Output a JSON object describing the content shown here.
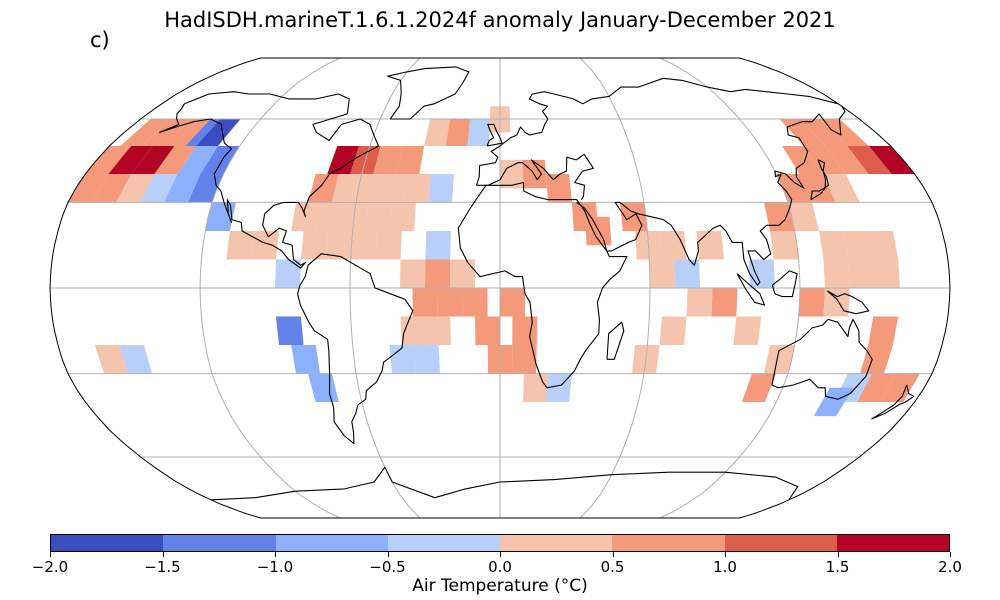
{
  "title": "HadISDH.marineT.1.6.1.2024f anomaly January-December 2021",
  "panel_label": "c)",
  "colorbar": {
    "label": "Air Temperature (°C)",
    "ticks": [
      "−2.0",
      "−1.5",
      "−1.0",
      "−0.5",
      "0.0",
      "0.5",
      "1.0",
      "1.5",
      "2.0"
    ],
    "colors": [
      "#3b4cc0",
      "#6282ea",
      "#8db0fe",
      "#b7cff9",
      "#f5c4ac",
      "#f49a7b",
      "#dc5d4a",
      "#b40426"
    ]
  },
  "map": {
    "projection": "Robinson",
    "gridlines": true,
    "coastline_color": "#000000",
    "cells": [
      {
        "lon": -170,
        "lat": 55,
        "v": 0.8
      },
      {
        "lon": -160,
        "lat": 55,
        "v": 0.7
      },
      {
        "lon": -150,
        "lat": 55,
        "v": 0.6
      },
      {
        "lon": -140,
        "lat": 55,
        "v": -1.2
      },
      {
        "lon": -135,
        "lat": 55,
        "v": -1.6
      },
      {
        "lon": -175,
        "lat": 45,
        "v": 0.9
      },
      {
        "lon": -165,
        "lat": 45,
        "v": 1.6
      },
      {
        "lon": -155,
        "lat": 45,
        "v": 1.7
      },
      {
        "lon": -145,
        "lat": 45,
        "v": 0.9
      },
      {
        "lon": -135,
        "lat": 45,
        "v": -0.7
      },
      {
        "lon": -125,
        "lat": 45,
        "v": -1.2
      },
      {
        "lon": -175,
        "lat": 35,
        "v": 0.7
      },
      {
        "lon": -165,
        "lat": 35,
        "v": 0.6
      },
      {
        "lon": -155,
        "lat": 35,
        "v": 0.3
      },
      {
        "lon": -145,
        "lat": 35,
        "v": -0.3
      },
      {
        "lon": -135,
        "lat": 35,
        "v": -0.6
      },
      {
        "lon": -125,
        "lat": 35,
        "v": -1.1
      },
      {
        "lon": -115,
        "lat": 25,
        "v": -0.8
      },
      {
        "lon": -105,
        "lat": 15,
        "v": 0.4
      },
      {
        "lon": -95,
        "lat": 15,
        "v": 0.3
      },
      {
        "lon": -85,
        "lat": 5,
        "v": -0.4
      },
      {
        "lon": -85,
        "lat": -15,
        "v": -1.2
      },
      {
        "lon": -80,
        "lat": -25,
        "v": -1.0
      },
      {
        "lon": -75,
        "lat": -35,
        "v": -0.9
      },
      {
        "lon": -160,
        "lat": -25,
        "v": 0.4
      },
      {
        "lon": -150,
        "lat": -25,
        "v": -0.3
      },
      {
        "lon": -70,
        "lat": 45,
        "v": 1.6
      },
      {
        "lon": -60,
        "lat": 45,
        "v": 1.1
      },
      {
        "lon": -50,
        "lat": 45,
        "v": 0.9
      },
      {
        "lon": -40,
        "lat": 45,
        "v": 0.6
      },
      {
        "lon": -30,
        "lat": 55,
        "v": 0.4
      },
      {
        "lon": -20,
        "lat": 55,
        "v": 0.5
      },
      {
        "lon": -10,
        "lat": 55,
        "v": -0.3
      },
      {
        "lon": 0,
        "lat": 60,
        "v": 0.3
      },
      {
        "lon": -75,
        "lat": 35,
        "v": 0.6
      },
      {
        "lon": -65,
        "lat": 35,
        "v": 0.4
      },
      {
        "lon": -55,
        "lat": 35,
        "v": 0.3
      },
      {
        "lon": -45,
        "lat": 35,
        "v": 0.4
      },
      {
        "lon": -35,
        "lat": 35,
        "v": 0.3
      },
      {
        "lon": -25,
        "lat": 35,
        "v": -0.3
      },
      {
        "lon": -80,
        "lat": 25,
        "v": 0.4
      },
      {
        "lon": -70,
        "lat": 25,
        "v": 0.3
      },
      {
        "lon": -60,
        "lat": 25,
        "v": 0.3
      },
      {
        "lon": -50,
        "lat": 25,
        "v": 0.4
      },
      {
        "lon": -40,
        "lat": 25,
        "v": 0.3
      },
      {
        "lon": -75,
        "lat": 15,
        "v": 0.4
      },
      {
        "lon": -65,
        "lat": 15,
        "v": 0.3
      },
      {
        "lon": -55,
        "lat": 15,
        "v": 0.4
      },
      {
        "lon": -45,
        "lat": 15,
        "v": 0.3
      },
      {
        "lon": -25,
        "lat": 15,
        "v": -0.4
      },
      {
        "lon": -35,
        "lat": 5,
        "v": 0.4
      },
      {
        "lon": -25,
        "lat": 5,
        "v": 0.6
      },
      {
        "lon": -15,
        "lat": 5,
        "v": 0.3
      },
      {
        "lon": -30,
        "lat": -5,
        "v": 0.6
      },
      {
        "lon": -20,
        "lat": -5,
        "v": 0.7
      },
      {
        "lon": -10,
        "lat": -5,
        "v": 0.8
      },
      {
        "lon": -35,
        "lat": -15,
        "v": 0.3
      },
      {
        "lon": -25,
        "lat": -15,
        "v": 0.4
      },
      {
        "lon": -5,
        "lat": -15,
        "v": 0.8
      },
      {
        "lon": -40,
        "lat": -25,
        "v": -0.3
      },
      {
        "lon": -30,
        "lat": -25,
        "v": -0.4
      },
      {
        "lon": 0,
        "lat": -25,
        "v": 0.6
      },
      {
        "lon": 5,
        "lat": -5,
        "v": 0.7
      },
      {
        "lon": 10,
        "lat": -15,
        "v": 0.7
      },
      {
        "lon": 10,
        "lat": -25,
        "v": 0.6
      },
      {
        "lon": 15,
        "lat": -35,
        "v": 0.4
      },
      {
        "lon": 25,
        "lat": -35,
        "v": -0.3
      },
      {
        "lon": 5,
        "lat": 40,
        "v": 0.4
      },
      {
        "lon": 15,
        "lat": 40,
        "v": 0.6
      },
      {
        "lon": 25,
        "lat": 35,
        "v": 0.5
      },
      {
        "lon": 35,
        "lat": 25,
        "v": 0.7
      },
      {
        "lon": 40,
        "lat": 20,
        "v": 0.6
      },
      {
        "lon": 55,
        "lat": 25,
        "v": 0.5
      },
      {
        "lon": 60,
        "lat": 15,
        "v": 0.4
      },
      {
        "lon": 70,
        "lat": 15,
        "v": 0.3
      },
      {
        "lon": 65,
        "lat": 5,
        "v": 0.4
      },
      {
        "lon": 75,
        "lat": 5,
        "v": -0.3
      },
      {
        "lon": 85,
        "lat": 15,
        "v": 0.4
      },
      {
        "lon": 80,
        "lat": -5,
        "v": 0.3
      },
      {
        "lon": 70,
        "lat": -15,
        "v": 0.4
      },
      {
        "lon": 60,
        "lat": -25,
        "v": 0.3
      },
      {
        "lon": 90,
        "lat": -5,
        "v": 0.6
      },
      {
        "lon": 100,
        "lat": -15,
        "v": 0.4
      },
      {
        "lon": 105,
        "lat": 5,
        "v": -0.3
      },
      {
        "lon": 115,
        "lat": 15,
        "v": 0.4
      },
      {
        "lon": 115,
        "lat": 25,
        "v": 0.6
      },
      {
        "lon": 125,
        "lat": 25,
        "v": 0.4
      },
      {
        "lon": 125,
        "lat": 35,
        "v": 0.7
      },
      {
        "lon": 135,
        "lat": 35,
        "v": 0.6
      },
      {
        "lon": 145,
        "lat": 35,
        "v": 0.4
      },
      {
        "lon": 135,
        "lat": 45,
        "v": 0.8
      },
      {
        "lon": 145,
        "lat": 45,
        "v": 0.7
      },
      {
        "lon": 155,
        "lat": 45,
        "v": 0.6
      },
      {
        "lon": 165,
        "lat": 45,
        "v": 1.2
      },
      {
        "lon": 175,
        "lat": 45,
        "v": 1.6
      },
      {
        "lon": 145,
        "lat": 55,
        "v": 0.6
      },
      {
        "lon": 155,
        "lat": 55,
        "v": 0.7
      },
      {
        "lon": 165,
        "lat": 55,
        "v": 0.5
      },
      {
        "lon": 135,
        "lat": 15,
        "v": 0.4
      },
      {
        "lon": 145,
        "lat": 15,
        "v": 0.3
      },
      {
        "lon": 155,
        "lat": 15,
        "v": 0.3
      },
      {
        "lon": 135,
        "lat": 5,
        "v": 0.3
      },
      {
        "lon": 145,
        "lat": 5,
        "v": 0.4
      },
      {
        "lon": 155,
        "lat": 5,
        "v": 0.3
      },
      {
        "lon": 125,
        "lat": -5,
        "v": 0.6
      },
      {
        "lon": 135,
        "lat": -5,
        "v": 0.4
      },
      {
        "lon": 155,
        "lat": -15,
        "v": 0.7
      },
      {
        "lon": 155,
        "lat": -25,
        "v": 0.6
      },
      {
        "lon": 115,
        "lat": -25,
        "v": 0.4
      },
      {
        "lon": 110,
        "lat": -35,
        "v": 0.6
      },
      {
        "lon": 150,
        "lat": -35,
        "v": -0.4
      },
      {
        "lon": 160,
        "lat": -35,
        "v": 0.8
      },
      {
        "lon": 170,
        "lat": -35,
        "v": 0.9
      },
      {
        "lon": 145,
        "lat": -40,
        "v": -0.8
      }
    ]
  }
}
